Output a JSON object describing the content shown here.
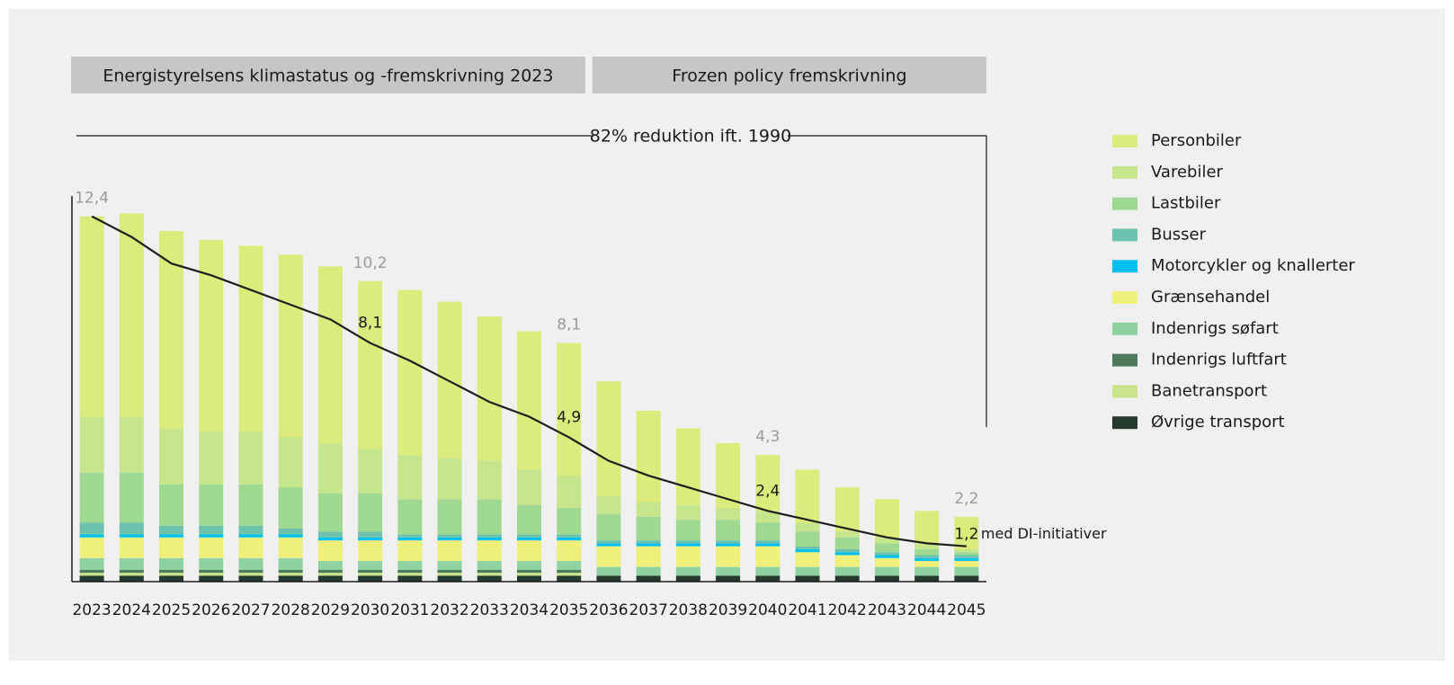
{
  "chart_data": {
    "type": "stacked_bar",
    "categories": [
      "2023",
      "2024",
      "2025",
      "2026",
      "2027",
      "2028",
      "2029",
      "2030",
      "2031",
      "2032",
      "2033",
      "2034",
      "2035",
      "2036",
      "2037",
      "2038",
      "2039",
      "2040",
      "2041",
      "2042",
      "2043",
      "2044",
      "2045"
    ],
    "ylim": [
      0,
      13
    ],
    "periods": [
      {
        "label": "Energistyrelsens klimastatus og -fremskrivning 2023",
        "start": "2023",
        "end": "2035"
      },
      {
        "label": "Frozen policy fremskrivning",
        "start": "2036",
        "end": "2045"
      }
    ],
    "bracket_label": "82% reduktion ift. 1990",
    "series": [
      {
        "name": "Øvrige transport",
        "color": "#253a2e",
        "values": [
          0.2,
          0.2,
          0.2,
          0.2,
          0.2,
          0.2,
          0.2,
          0.2,
          0.2,
          0.2,
          0.2,
          0.2,
          0.2,
          0.2,
          0.2,
          0.2,
          0.2,
          0.2,
          0.2,
          0.2,
          0.2,
          0.2,
          0.2
        ]
      },
      {
        "name": "Banetransport",
        "color": "#c9e48a",
        "values": [
          0.1,
          0.1,
          0.1,
          0.1,
          0.1,
          0.1,
          0.1,
          0.1,
          0.1,
          0.1,
          0.1,
          0.1,
          0.1,
          0,
          0,
          0,
          0,
          0,
          0,
          0,
          0,
          0,
          0
        ]
      },
      {
        "name": "Indenrigs luftfart",
        "color": "#4e7a5c",
        "values": [
          0.1,
          0.1,
          0.1,
          0.1,
          0.1,
          0.1,
          0.1,
          0.1,
          0.1,
          0.1,
          0.1,
          0.1,
          0.1,
          0,
          0,
          0,
          0,
          0,
          0,
          0,
          0,
          0,
          0
        ]
      },
      {
        "name": "Indenrigs søfart",
        "color": "#8dd2a0",
        "values": [
          0.4,
          0.4,
          0.4,
          0.4,
          0.4,
          0.4,
          0.3,
          0.3,
          0.3,
          0.3,
          0.3,
          0.3,
          0.3,
          0.3,
          0.3,
          0.3,
          0.3,
          0.3,
          0.3,
          0.3,
          0.3,
          0.3,
          0.3
        ]
      },
      {
        "name": "Grænsehandel",
        "color": "#eef07a",
        "values": [
          0.7,
          0.7,
          0.7,
          0.7,
          0.7,
          0.7,
          0.7,
          0.7,
          0.7,
          0.7,
          0.7,
          0.7,
          0.7,
          0.7,
          0.7,
          0.7,
          0.7,
          0.7,
          0.5,
          0.4,
          0.3,
          0.2,
          0.2
        ]
      },
      {
        "name": "Motorcykler og knallerter",
        "color": "#00c0ee",
        "values": [
          0.1,
          0.1,
          0.1,
          0.1,
          0.1,
          0.1,
          0.1,
          0.1,
          0.1,
          0.1,
          0.1,
          0.1,
          0.1,
          0.1,
          0.1,
          0.1,
          0.1,
          0.1,
          0.1,
          0.1,
          0.1,
          0.1,
          0.1
        ]
      },
      {
        "name": "Busser",
        "color": "#6cc2ac",
        "values": [
          0.4,
          0.4,
          0.3,
          0.3,
          0.3,
          0.2,
          0.2,
          0.2,
          0.1,
          0.1,
          0.1,
          0.1,
          0.1,
          0.1,
          0.1,
          0.1,
          0.1,
          0.1,
          0.1,
          0.1,
          0.1,
          0.1,
          0.1
        ]
      },
      {
        "name": "Lastbiler",
        "color": "#9fd890",
        "values": [
          1.7,
          1.7,
          1.4,
          1.4,
          1.4,
          1.4,
          1.3,
          1.3,
          1.2,
          1.2,
          1.2,
          1.0,
          0.9,
          0.9,
          0.8,
          0.7,
          0.7,
          0.6,
          0.5,
          0.4,
          0.3,
          0.2,
          0.1
        ]
      },
      {
        "name": "Varebiler",
        "color": "#c5e68c",
        "values": [
          1.9,
          1.9,
          1.9,
          1.8,
          1.8,
          1.7,
          1.7,
          1.5,
          1.5,
          1.4,
          1.3,
          1.2,
          1.1,
          0.6,
          0.5,
          0.5,
          0.4,
          0.4,
          0.3,
          0.2,
          0.2,
          0.2,
          0.1
        ]
      },
      {
        "name": "Personbiler",
        "color": "#dbeb7c",
        "values": [
          6.8,
          6.9,
          6.7,
          6.5,
          6.3,
          6.2,
          6.0,
          5.7,
          5.6,
          5.3,
          4.9,
          4.7,
          4.5,
          3.9,
          3.1,
          2.6,
          2.2,
          1.9,
          1.8,
          1.5,
          1.3,
          1.1,
          1.1
        ]
      }
    ],
    "totals": {
      "categories": [
        "2023",
        "2030",
        "2035",
        "2040",
        "2045"
      ],
      "values": [
        12.4,
        10.2,
        8.1,
        4.3,
        2.2
      ],
      "value_labels": [
        "12,4",
        "10,2",
        "8,1",
        "4,3",
        "2,2"
      ]
    },
    "line": {
      "name": "med DI-initiativer",
      "color": "#1f1f1f",
      "values": [
        12.4,
        11.7,
        10.8,
        10.4,
        9.9,
        9.4,
        8.9,
        8.1,
        7.5,
        6.8,
        6.1,
        5.6,
        4.9,
        4.1,
        3.6,
        3.2,
        2.8,
        2.4,
        2.1,
        1.8,
        1.5,
        1.3,
        1.2
      ],
      "value_labels": [
        null,
        null,
        null,
        null,
        null,
        null,
        null,
        "8,1",
        null,
        null,
        null,
        null,
        "4,9",
        null,
        null,
        null,
        null,
        "2,4",
        null,
        null,
        null,
        null,
        "1,2"
      ]
    }
  }
}
